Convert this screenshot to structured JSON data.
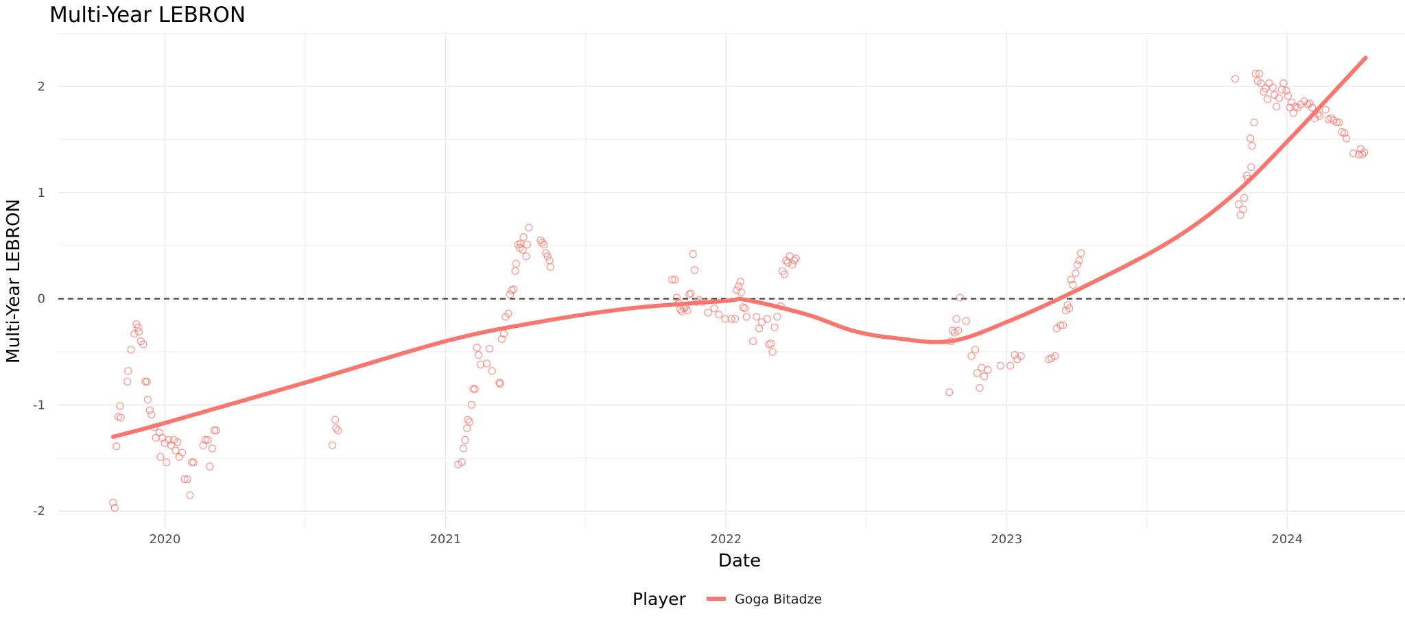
{
  "chart_data": {
    "type": "scatter",
    "title": "Multi-Year LEBRON",
    "xlabel": "Date",
    "ylabel": "Multi-Year LEBRON",
    "xlim": [
      2019.62,
      2024.42
    ],
    "ylim": [
      -2.16,
      2.51
    ],
    "x_ticks": [
      2020,
      2021,
      2022,
      2023,
      2024
    ],
    "x_tick_labels": [
      "2020",
      "2021",
      "2022",
      "2023",
      "2024"
    ],
    "y_ticks": [
      -2,
      -1,
      0,
      1,
      2
    ],
    "y_tick_labels": [
      "-2",
      "-1",
      "0",
      "1",
      "2"
    ],
    "grid": true,
    "reference_line": {
      "y": 0,
      "style": "dashed"
    },
    "legend": {
      "title": "Player",
      "position": "bottom",
      "entries": [
        "Goga Bitadze"
      ]
    },
    "colors": {
      "series": "#F8766D",
      "reference": "#333333",
      "grid": "#ebebeb"
    },
    "series": [
      {
        "name": "Goga Bitadze",
        "points": [
          [
            2019.815,
            -1.92
          ],
          [
            2019.821,
            -1.97
          ],
          [
            2019.827,
            -1.39
          ],
          [
            2019.834,
            -1.11
          ],
          [
            2019.84,
            -1.01
          ],
          [
            2019.843,
            -1.12
          ],
          [
            2019.866,
            -0.78
          ],
          [
            2019.869,
            -0.68
          ],
          [
            2019.879,
            -0.48
          ],
          [
            2019.891,
            -0.33
          ],
          [
            2019.898,
            -0.24
          ],
          [
            2019.904,
            -0.27
          ],
          [
            2019.907,
            -0.31
          ],
          [
            2019.914,
            -0.4
          ],
          [
            2019.923,
            -0.43
          ],
          [
            2019.93,
            -0.78
          ],
          [
            2019.936,
            -0.78
          ],
          [
            2019.939,
            -0.95
          ],
          [
            2019.946,
            -1.05
          ],
          [
            2019.952,
            -1.09
          ],
          [
            2019.962,
            -1.21
          ],
          [
            2019.968,
            -1.31
          ],
          [
            2019.981,
            -1.26
          ],
          [
            2019.984,
            -1.49
          ],
          [
            2019.99,
            -1.31
          ],
          [
            2020.0,
            -1.36
          ],
          [
            2020.006,
            -1.54
          ],
          [
            2020.013,
            -1.33
          ],
          [
            2020.022,
            -1.38
          ],
          [
            2020.032,
            -1.33
          ],
          [
            2020.038,
            -1.43
          ],
          [
            2020.045,
            -1.35
          ],
          [
            2020.051,
            -1.49
          ],
          [
            2020.061,
            -1.45
          ],
          [
            2020.07,
            -1.7
          ],
          [
            2020.08,
            -1.7
          ],
          [
            2020.089,
            -1.85
          ],
          [
            2020.096,
            -1.54
          ],
          [
            2020.102,
            -1.54
          ],
          [
            2020.137,
            -1.38
          ],
          [
            2020.144,
            -1.33
          ],
          [
            2020.153,
            -1.33
          ],
          [
            2020.16,
            -1.58
          ],
          [
            2020.169,
            -1.41
          ],
          [
            2020.176,
            -1.24
          ],
          [
            2020.182,
            -1.24
          ],
          [
            2020.597,
            -1.38
          ],
          [
            2020.607,
            -1.14
          ],
          [
            2020.61,
            -1.22
          ],
          [
            2020.617,
            -1.24
          ],
          [
            2021.045,
            -1.56
          ],
          [
            2021.058,
            -1.54
          ],
          [
            2021.064,
            -1.41
          ],
          [
            2021.07,
            -1.33
          ],
          [
            2021.077,
            -1.22
          ],
          [
            2021.08,
            -1.14
          ],
          [
            2021.086,
            -1.16
          ],
          [
            2021.093,
            -1.0
          ],
          [
            2021.099,
            -0.85
          ],
          [
            2021.105,
            -0.85
          ],
          [
            2021.112,
            -0.46
          ],
          [
            2021.118,
            -0.53
          ],
          [
            2021.125,
            -0.62
          ],
          [
            2021.147,
            -0.61
          ],
          [
            2021.157,
            -0.47
          ],
          [
            2021.166,
            -0.68
          ],
          [
            2021.192,
            -0.79
          ],
          [
            2021.195,
            -0.8
          ],
          [
            2021.201,
            -0.38
          ],
          [
            2021.208,
            -0.33
          ],
          [
            2021.214,
            -0.17
          ],
          [
            2021.224,
            -0.14
          ],
          [
            2021.23,
            0.04
          ],
          [
            2021.236,
            0.08
          ],
          [
            2021.243,
            0.09
          ],
          [
            2021.249,
            0.26
          ],
          [
            2021.252,
            0.33
          ],
          [
            2021.259,
            0.51
          ],
          [
            2021.265,
            0.48
          ],
          [
            2021.268,
            0.52
          ],
          [
            2021.275,
            0.46
          ],
          [
            2021.278,
            0.58
          ],
          [
            2021.288,
            0.4
          ],
          [
            2021.291,
            0.51
          ],
          [
            2021.297,
            0.67
          ],
          [
            2021.339,
            0.55
          ],
          [
            2021.345,
            0.53
          ],
          [
            2021.351,
            0.51
          ],
          [
            2021.358,
            0.43
          ],
          [
            2021.364,
            0.4
          ],
          [
            2021.371,
            0.36
          ],
          [
            2021.374,
            0.3
          ],
          [
            2021.808,
            0.18
          ],
          [
            2021.818,
            0.18
          ],
          [
            2021.824,
            0.01
          ],
          [
            2021.831,
            -0.04
          ],
          [
            2021.837,
            -0.1
          ],
          [
            2021.843,
            -0.12
          ],
          [
            2021.85,
            -0.09
          ],
          [
            2021.856,
            -0.08
          ],
          [
            2021.863,
            -0.11
          ],
          [
            2021.869,
            0.04
          ],
          [
            2021.875,
            0.05
          ],
          [
            2021.882,
            0.42
          ],
          [
            2021.888,
            0.27
          ],
          [
            2021.895,
            -0.03
          ],
          [
            2021.904,
            -0.01
          ],
          [
            2021.917,
            -0.03
          ],
          [
            2021.936,
            -0.13
          ],
          [
            2021.958,
            -0.09
          ],
          [
            2021.974,
            -0.15
          ],
          [
            2021.997,
            -0.19
          ],
          [
            2022.019,
            -0.19
          ],
          [
            2022.032,
            -0.19
          ],
          [
            2022.038,
            0.08
          ],
          [
            2022.045,
            0.12
          ],
          [
            2022.051,
            0.16
          ],
          [
            2022.054,
            0.06
          ],
          [
            2022.061,
            -0.08
          ],
          [
            2022.067,
            -0.09
          ],
          [
            2022.073,
            -0.17
          ],
          [
            2022.096,
            -0.4
          ],
          [
            2022.109,
            -0.17
          ],
          [
            2022.118,
            -0.28
          ],
          [
            2022.128,
            -0.22
          ],
          [
            2022.147,
            -0.19
          ],
          [
            2022.153,
            -0.43
          ],
          [
            2022.16,
            -0.42
          ],
          [
            2022.166,
            -0.5
          ],
          [
            2022.173,
            -0.27
          ],
          [
            2022.182,
            -0.17
          ],
          [
            2022.195,
            -0.07
          ],
          [
            2022.201,
            0.26
          ],
          [
            2022.208,
            0.23
          ],
          [
            2022.214,
            0.36
          ],
          [
            2022.22,
            0.34
          ],
          [
            2022.227,
            0.4
          ],
          [
            2022.236,
            0.32
          ],
          [
            2022.243,
            0.36
          ],
          [
            2022.249,
            0.38
          ],
          [
            2022.796,
            -0.88
          ],
          [
            2022.802,
            -0.4
          ],
          [
            2022.808,
            -0.3
          ],
          [
            2022.815,
            -0.32
          ],
          [
            2022.821,
            -0.19
          ],
          [
            2022.827,
            -0.3
          ],
          [
            2022.834,
            0.01
          ],
          [
            2022.856,
            -0.21
          ],
          [
            2022.875,
            -0.54
          ],
          [
            2022.888,
            -0.48
          ],
          [
            2022.895,
            -0.7
          ],
          [
            2022.904,
            -0.84
          ],
          [
            2022.911,
            -0.65
          ],
          [
            2022.92,
            -0.73
          ],
          [
            2022.933,
            -0.67
          ],
          [
            2022.978,
            -0.63
          ],
          [
            2023.013,
            -0.63
          ],
          [
            2023.029,
            -0.53
          ],
          [
            2023.038,
            -0.57
          ],
          [
            2023.051,
            -0.54
          ],
          [
            2023.15,
            -0.57
          ],
          [
            2023.16,
            -0.56
          ],
          [
            2023.173,
            -0.54
          ],
          [
            2023.179,
            -0.28
          ],
          [
            2023.192,
            -0.25
          ],
          [
            2023.201,
            -0.25
          ],
          [
            2023.211,
            -0.11
          ],
          [
            2023.217,
            -0.06
          ],
          [
            2023.224,
            -0.09
          ],
          [
            2023.23,
            0.18
          ],
          [
            2023.236,
            0.13
          ],
          [
            2023.246,
            0.24
          ],
          [
            2023.252,
            0.32
          ],
          [
            2023.259,
            0.36
          ],
          [
            2023.265,
            0.43
          ],
          [
            2023.815,
            2.07
          ],
          [
            2023.827,
            0.89
          ],
          [
            2023.834,
            0.79
          ],
          [
            2023.843,
            0.84
          ],
          [
            2023.847,
            0.95
          ],
          [
            2023.856,
            1.16
          ],
          [
            2023.859,
            1.13
          ],
          [
            2023.869,
            1.51
          ],
          [
            2023.872,
            1.24
          ],
          [
            2023.875,
            1.44
          ],
          [
            2023.882,
            1.66
          ],
          [
            2023.888,
            2.12
          ],
          [
            2023.895,
            2.05
          ],
          [
            2023.901,
            2.12
          ],
          [
            2023.907,
            2.03
          ],
          [
            2023.917,
            1.95
          ],
          [
            2023.923,
            1.98
          ],
          [
            2023.93,
            1.88
          ],
          [
            2023.936,
            2.03
          ],
          [
            2023.949,
            1.99
          ],
          [
            2023.955,
            1.92
          ],
          [
            2023.962,
            1.81
          ],
          [
            2023.971,
            1.89
          ],
          [
            2023.981,
            1.97
          ],
          [
            2023.987,
            2.03
          ],
          [
            2023.997,
            1.96
          ],
          [
            2024.003,
            1.91
          ],
          [
            2024.01,
            1.8
          ],
          [
            2024.016,
            1.85
          ],
          [
            2024.022,
            1.75
          ],
          [
            2024.029,
            1.81
          ],
          [
            2024.038,
            1.8
          ],
          [
            2024.048,
            1.83
          ],
          [
            2024.061,
            1.86
          ],
          [
            2024.073,
            1.83
          ],
          [
            2024.08,
            1.84
          ],
          [
            2024.089,
            1.8
          ],
          [
            2024.099,
            1.7
          ],
          [
            2024.109,
            1.74
          ],
          [
            2024.115,
            1.72
          ],
          [
            2024.137,
            1.78
          ],
          [
            2024.147,
            1.69
          ],
          [
            2024.157,
            1.7
          ],
          [
            2024.166,
            1.68
          ],
          [
            2024.176,
            1.66
          ],
          [
            2024.185,
            1.66
          ],
          [
            2024.195,
            1.57
          ],
          [
            2024.204,
            1.56
          ],
          [
            2024.211,
            1.51
          ],
          [
            2024.236,
            1.37
          ],
          [
            2024.256,
            1.36
          ],
          [
            2024.262,
            1.41
          ],
          [
            2024.268,
            1.36
          ],
          [
            2024.275,
            1.38
          ]
        ],
        "smooth": [
          [
            2019.815,
            -1.3
          ],
          [
            2020.0,
            -1.17
          ],
          [
            2020.5,
            -0.79
          ],
          [
            2021.0,
            -0.4
          ],
          [
            2021.33,
            -0.22
          ],
          [
            2021.66,
            -0.09
          ],
          [
            2022.0,
            -0.02
          ],
          [
            2022.07,
            -0.01
          ],
          [
            2022.29,
            -0.15
          ],
          [
            2022.45,
            -0.3
          ],
          [
            2022.6,
            -0.37
          ],
          [
            2022.8,
            -0.4
          ],
          [
            2023.0,
            -0.22
          ],
          [
            2023.25,
            0.08
          ],
          [
            2023.57,
            0.52
          ],
          [
            2023.8,
            0.96
          ],
          [
            2024.0,
            1.48
          ],
          [
            2024.28,
            2.27
          ]
        ]
      }
    ]
  }
}
